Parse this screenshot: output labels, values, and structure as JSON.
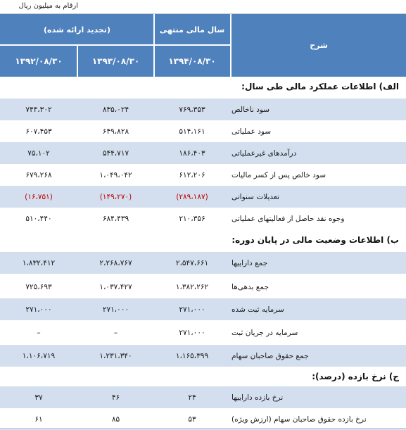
{
  "unit_note": "ارقام به میلیون ریال",
  "header": {
    "description": "شرح",
    "fiscal_year_end": "سال مالی منتهی",
    "restated": "(تجدید ارائه شده)",
    "date_1394": "۱۳۹۴/۰۸/۳۰",
    "date_1393": "۱۳۹۳/۰۸/۳۰",
    "date_1392": "۱۳۹۲/۰۸/۳۰"
  },
  "sections": {
    "a": "الف) اطلاعات عملکرد مالی طی سال:",
    "b": "ب) اطلاعات وضعیت مالی در پایان دوره:",
    "c": "ج) نرخ بازده (درصد):"
  },
  "rows": [
    {
      "label": "سود ناخالص",
      "v1394": "۷۶۹،۳۵۳",
      "v1393": "۸۳۵،۰۲۴",
      "v1392": "۷۴۴،۳۰۲"
    },
    {
      "label": "سود عملیاتی",
      "v1394": "۵۱۴،۱۶۱",
      "v1393": "۶۴۹،۸۲۸",
      "v1392": "۶۰۷،۴۵۳"
    },
    {
      "label": "درآمدهای غیرعملیاتی",
      "v1394": "۱۸۶،۴۰۳",
      "v1393": "۵۴۴،۷۱۷",
      "v1392": "۷۵،۱۰۲"
    },
    {
      "label": "سود خالص پس از کسر مالیات",
      "v1394": "۶۱۲،۲۰۶",
      "v1393": "۱،۰۴۹،۰۴۲",
      "v1392": "۶۷۹،۲۶۸"
    },
    {
      "label": "تعدیلات سنواتی",
      "v1394": "(۲۸۹،۱۸۷)",
      "v1393": "(۱۴۹،۲۷۰)",
      "v1392": "(۱۶،۷۵۱)"
    },
    {
      "label": "وجوه نقد حاصل از فعالیتهای عملیاتی",
      "v1394": "۲۱۰،۳۵۶",
      "v1393": "۶۸۴،۴۳۹",
      "v1392": "۵۱۰،۴۴۰"
    },
    {
      "label": "جمع داراییها",
      "v1394": "۲،۵۴۷،۶۶۱",
      "v1393": "۲،۲۶۸،۷۶۷",
      "v1392": "۱،۸۳۲،۴۱۲"
    },
    {
      "label": "جمع بدهی‌ها",
      "v1394": "۱،۳۸۲،۲۶۲",
      "v1393": "۱،۰۳۷،۴۲۷",
      "v1392": "۷۲۵،۶۹۳"
    },
    {
      "label": "سرمایه ثبت شده",
      "v1394": "۲۷۱،۰۰۰",
      "v1393": "۲۷۱،۰۰۰",
      "v1392": "۲۷۱،۰۰۰"
    },
    {
      "label": "سرمایه در جریان ثبت",
      "v1394": "۲۷۱،۰۰۰",
      "v1393": "–",
      "v1392": "–"
    },
    {
      "label": "جمع حقوق صاحبان سهام",
      "v1394": "۱،۱۶۵،۳۹۹",
      "v1393": "۱،۲۳۱،۳۴۰",
      "v1392": "۱،۱۰۶،۷۱۹"
    },
    {
      "label": "نرخ بازده داراییها",
      "v1394": "۲۴",
      "v1393": "۴۶",
      "v1392": "۳۷"
    },
    {
      "label": "نرخ بازده حقوق صاحبان سهام (ارزش ویژه)",
      "v1394": "۵۳",
      "v1393": "۸۵",
      "v1392": "۶۱"
    }
  ]
}
